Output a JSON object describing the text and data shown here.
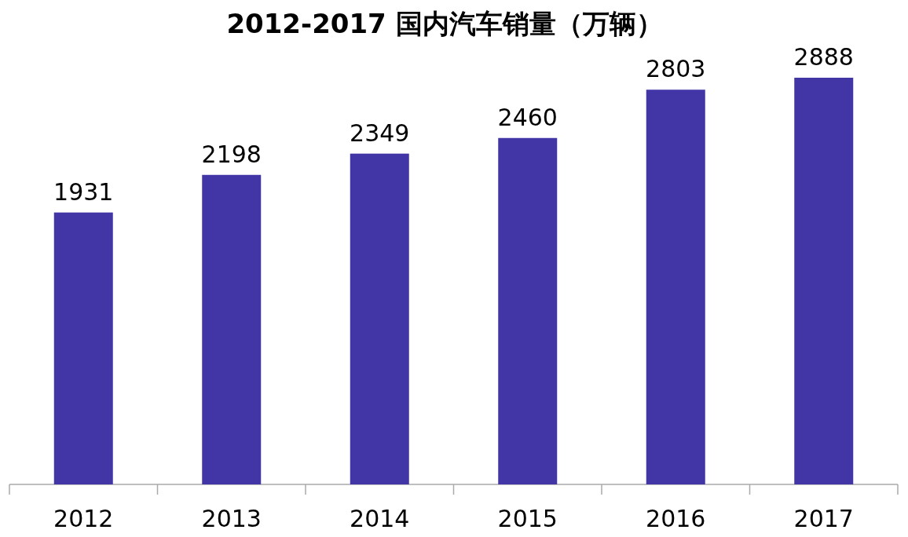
{
  "chart_data": {
    "type": "bar",
    "title": "2012-2017 国内汽车销量（万辆）",
    "categories": [
      "2012",
      "2013",
      "2014",
      "2015",
      "2016",
      "2017"
    ],
    "values": [
      1931,
      2198,
      2349,
      2460,
      2803,
      2888
    ],
    "color": "#4236a6",
    "data_labels": true
  }
}
